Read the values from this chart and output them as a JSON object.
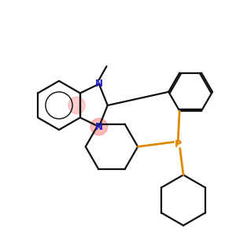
{
  "bg_color": "#ffffff",
  "bond_color": "#111111",
  "n_color": "#2222cc",
  "p_color": "#dd8800",
  "highlight_color": "#ff8080",
  "highlight_alpha": 0.55,
  "figsize": [
    3.0,
    3.0
  ],
  "dpi": 100,
  "xlim": [
    -2.8,
    2.8
  ],
  "ylim": [
    -2.8,
    2.8
  ]
}
